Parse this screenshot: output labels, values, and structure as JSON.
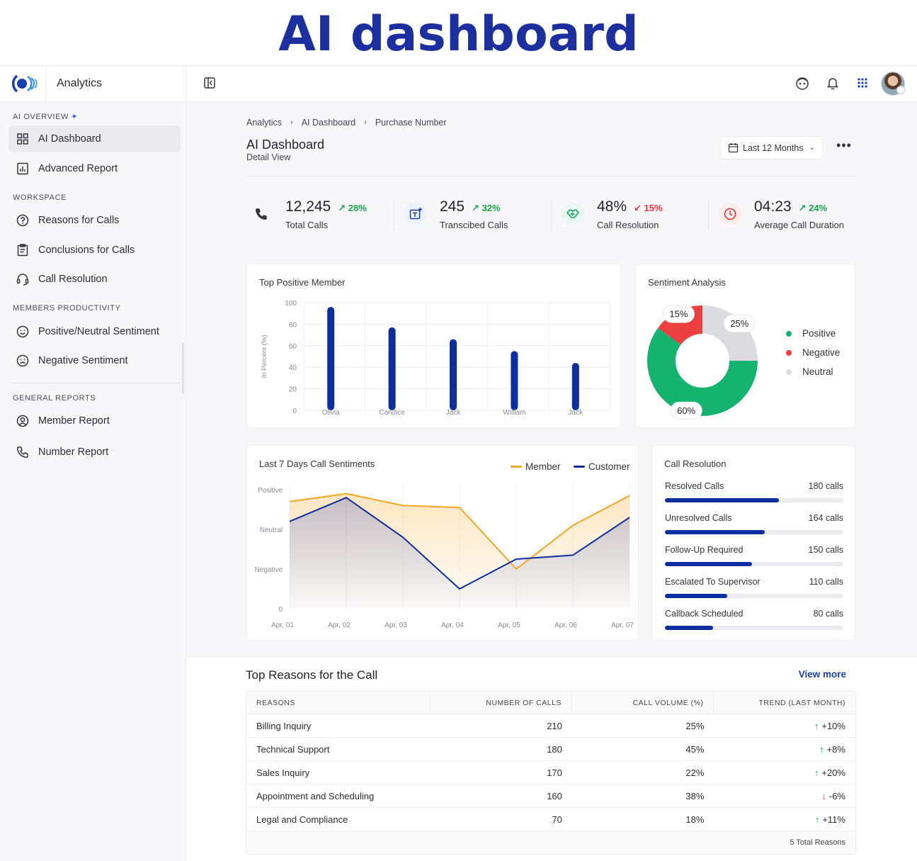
{
  "hero": {
    "title": "AI dashboard"
  },
  "app": {
    "name": "Analytics"
  },
  "colors": {
    "accent": "#0c2ea0",
    "positive": "#16a34a",
    "negative": "#e5343a",
    "neutral": "#d9d9de",
    "member": "#f5a623",
    "customer": "#0c2ea0"
  },
  "sidebar": {
    "sections": [
      {
        "title": "AI OVERVIEW",
        "items": [
          {
            "label": "AI Dashboard",
            "icon": "grid-icon"
          },
          {
            "label": "Advanced Report",
            "icon": "report-chart-icon"
          }
        ]
      },
      {
        "title": "WORKSPACE",
        "items": [
          {
            "label": "Reasons for Calls",
            "icon": "question-circle-icon"
          },
          {
            "label": "Conclusions for Calls",
            "icon": "clipboard-icon"
          },
          {
            "label": "Call Resolution",
            "icon": "headset-icon"
          }
        ]
      },
      {
        "title": "MEMBERS PRODUCTIVITY",
        "items": [
          {
            "label": "Positive/Neutral Sentiment",
            "icon": "smile-icon"
          },
          {
            "label": "Negative Sentiment",
            "icon": "frown-icon"
          }
        ]
      },
      {
        "title": "GENERAL REPORTS",
        "items": [
          {
            "label": "Member Report",
            "icon": "user-circle-icon"
          },
          {
            "label": "Number Report",
            "icon": "phone-icon"
          }
        ]
      }
    ]
  },
  "breadcrumb": [
    "Analytics",
    "AI Dashboard",
    "Purchase Number"
  ],
  "page": {
    "title": "AI Dashboard",
    "subtitle": "Detail View",
    "range": "Last 12 Months"
  },
  "kpis": [
    {
      "value": "12,245",
      "change": "28%",
      "direction": "up",
      "label": "Total Calls",
      "icon": "phone-icon"
    },
    {
      "value": "245",
      "change": "32%",
      "direction": "up",
      "label": "Transcibed Calls",
      "icon": "transcribe-icon"
    },
    {
      "value": "48%",
      "change": "15%",
      "direction": "down",
      "label": "Call Resolution",
      "icon": "handshake-icon"
    },
    {
      "value": "04:23",
      "change": "24%",
      "direction": "up",
      "label": "Average Call Duration",
      "icon": "clock-icon"
    }
  ],
  "top_members": {
    "title": "Top  Positive Member"
  },
  "sentiment": {
    "title": "Sentiment Analysis"
  },
  "trend": {
    "title": "Last 7 Days Call Sentiments"
  },
  "resolution": {
    "title": "Call Resolution",
    "rows": [
      {
        "label": "Resolved Calls",
        "value": "180 calls",
        "fraction": 0.64
      },
      {
        "label": "Unresolved Calls",
        "value": "164 calls",
        "fraction": 0.56
      },
      {
        "label": "Follow-Up Required",
        "value": "150 calls",
        "fraction": 0.49
      },
      {
        "label": "Escalated To Supervisor",
        "value": "110 calls",
        "fraction": 0.35
      },
      {
        "label": "Callback Scheduled",
        "value": "80 calls",
        "fraction": 0.27
      }
    ]
  },
  "reasons": {
    "title": "Top Reasons for the Call",
    "view_more": "View more",
    "columns": [
      "REASONS",
      "NUMBER OF CALLS",
      "CALL VOLUME (%)",
      "TREND (LAST MONTH)"
    ],
    "rows": [
      {
        "reason": "Billing Inquiry",
        "calls": "210",
        "volume": "25%",
        "trend": "+10%",
        "direction": "up"
      },
      {
        "reason": "Technical Support",
        "calls": "180",
        "volume": "45%",
        "trend": "+8%",
        "direction": "up"
      },
      {
        "reason": "Sales Inquiry",
        "calls": "170",
        "volume": "22%",
        "trend": "+20%",
        "direction": "up"
      },
      {
        "reason": "Appointment and Scheduling",
        "calls": "160",
        "volume": "38%",
        "trend": "-6%",
        "direction": "down"
      },
      {
        "reason": "Legal and Compliance",
        "calls": "70",
        "volume": "18%",
        "trend": "+11%",
        "direction": "up"
      }
    ],
    "footer": "5 Total Reasons"
  },
  "chart_data": [
    {
      "type": "bar",
      "title": "Top  Positive Member",
      "categories": [
        "Olivia",
        "Candice",
        "Jack",
        "William",
        "Jack"
      ],
      "values": [
        96,
        77,
        66,
        55,
        44
      ],
      "ylabel": "In Percent (%)",
      "yticks": [
        "0",
        "20",
        "40",
        "60",
        "80",
        "100"
      ],
      "ylim": [
        0,
        100
      ],
      "grid": true
    },
    {
      "type": "pie",
      "title": "Sentiment Analysis",
      "slices": [
        {
          "name": "Positive",
          "value": 60,
          "label": "60%",
          "color": "#14b46e"
        },
        {
          "name": "Negative",
          "value": 15,
          "label": "15%",
          "color": "#ec3f3f"
        },
        {
          "name": "Neutral",
          "value": 25,
          "label": "25%",
          "color": "#dcdce0"
        }
      ],
      "legend": "right"
    },
    {
      "type": "area",
      "title": "Last 7 Days Call Sentiments",
      "categories": [
        "Apr, 01",
        "Apr, 02",
        "Apr, 03",
        "Apr, 04",
        "Apr, 05",
        "Apr, 06",
        "Apr, 07"
      ],
      "yticks": [
        "0",
        "Negative",
        "Neutral",
        "Positive"
      ],
      "ylim": [
        0,
        3
      ],
      "series": [
        {
          "name": "Member",
          "color": "#f5a623",
          "values": [
            2.7,
            2.9,
            2.6,
            2.55,
            1.0,
            2.1,
            2.85
          ]
        },
        {
          "name": "Customer",
          "color": "#0c2ea0",
          "values": [
            2.2,
            2.8,
            1.8,
            0.5,
            1.25,
            1.35,
            2.3
          ]
        }
      ],
      "legend": "top-right",
      "grid": true
    }
  ]
}
